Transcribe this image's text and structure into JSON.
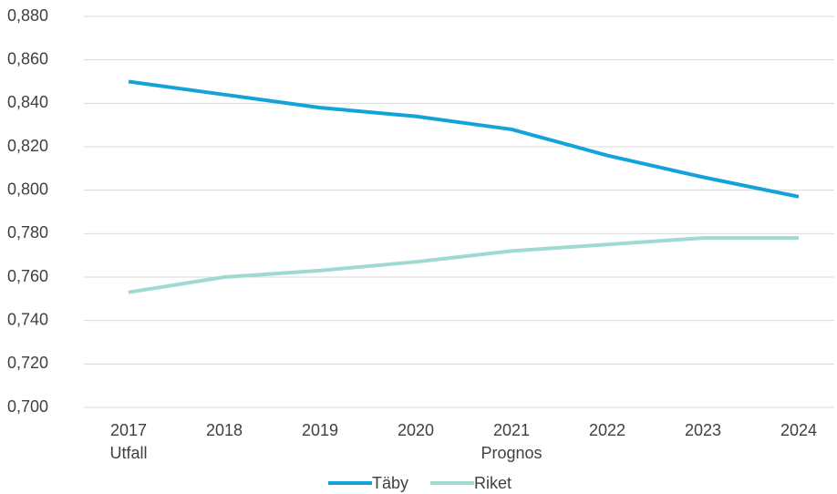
{
  "chart_data": {
    "type": "line",
    "categories": [
      "2017",
      "2018",
      "2019",
      "2020",
      "2021",
      "2022",
      "2023",
      "2024"
    ],
    "sub_labels": [
      "Utfall",
      null,
      null,
      null,
      "Prognos",
      null,
      null,
      null
    ],
    "series": [
      {
        "name": "Täby",
        "color": "#14a3d8",
        "values": [
          0.85,
          0.844,
          0.838,
          0.834,
          0.828,
          0.816,
          0.806,
          0.797
        ]
      },
      {
        "name": "Riket",
        "color": "#9fd9d1",
        "values": [
          0.753,
          0.76,
          0.763,
          0.767,
          0.772,
          0.775,
          0.778,
          0.778
        ]
      }
    ],
    "ylim": [
      0.7,
      0.88
    ],
    "yticks": [
      {
        "value": 0.7,
        "label": "0,700"
      },
      {
        "value": 0.72,
        "label": "0,720"
      },
      {
        "value": 0.74,
        "label": "0,740"
      },
      {
        "value": 0.76,
        "label": "0,760"
      },
      {
        "value": 0.78,
        "label": "0,780"
      },
      {
        "value": 0.8,
        "label": "0,800"
      },
      {
        "value": 0.82,
        "label": "0,820"
      },
      {
        "value": 0.84,
        "label": "0,840"
      },
      {
        "value": 0.86,
        "label": "0,860"
      },
      {
        "value": 0.88,
        "label": "0,880"
      }
    ],
    "grid": true,
    "legend": "bottom"
  }
}
